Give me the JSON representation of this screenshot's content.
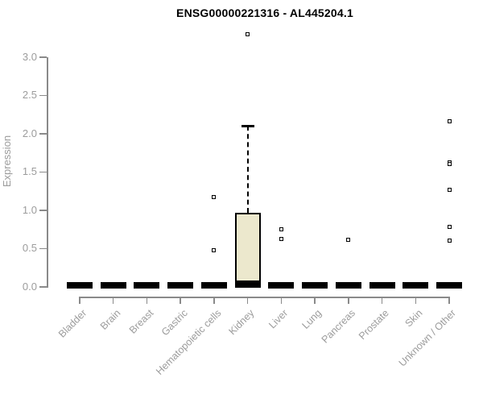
{
  "title": "ENSG00000221316 - AL445204.1",
  "chart_data": {
    "type": "box",
    "title": "ENSG00000221316 - AL445204.1",
    "xlabel": "",
    "ylabel": "Expression",
    "ylim": [
      0,
      3.3
    ],
    "yticks": [
      "0.0",
      "0.5",
      "1.0",
      "1.5",
      "2.0",
      "2.5",
      "3.0"
    ],
    "grid": false,
    "legend": "none",
    "categories": [
      "Bladder",
      "Brain",
      "Breast",
      "Gastric",
      "Hematopoietic cells",
      "Kidney",
      "Liver",
      "Lung",
      "Pancreas",
      "Prostate",
      "Skin",
      "Unknown / Other"
    ],
    "boxes": [
      {
        "category": "Bladder",
        "q1": 0,
        "median": 0,
        "q3": 0,
        "whisker_low": 0,
        "whisker_high": 0,
        "outliers": []
      },
      {
        "category": "Brain",
        "q1": 0,
        "median": 0,
        "q3": 0,
        "whisker_low": 0,
        "whisker_high": 0,
        "outliers": []
      },
      {
        "category": "Breast",
        "q1": 0,
        "median": 0,
        "q3": 0,
        "whisker_low": 0,
        "whisker_high": 0,
        "outliers": []
      },
      {
        "category": "Gastric",
        "q1": 0,
        "median": 0,
        "q3": 0,
        "whisker_low": 0,
        "whisker_high": 0,
        "outliers": []
      },
      {
        "category": "Hematopoietic cells",
        "q1": 0,
        "median": 0,
        "q3": 0,
        "whisker_low": 0,
        "whisker_high": 0,
        "outliers": [
          1.17,
          0.48
        ]
      },
      {
        "category": "Kidney",
        "q1": 0,
        "median": 0.02,
        "q3": 0.97,
        "whisker_low": 0,
        "whisker_high": 2.1,
        "outliers": [
          3.3
        ]
      },
      {
        "category": "Liver",
        "q1": 0,
        "median": 0,
        "q3": 0,
        "whisker_low": 0,
        "whisker_high": 0,
        "outliers": [
          0.75,
          0.63
        ]
      },
      {
        "category": "Lung",
        "q1": 0,
        "median": 0,
        "q3": 0,
        "whisker_low": 0,
        "whisker_high": 0,
        "outliers": []
      },
      {
        "category": "Pancreas",
        "q1": 0,
        "median": 0,
        "q3": 0,
        "whisker_low": 0,
        "whisker_high": 0,
        "outliers": [
          0.62
        ]
      },
      {
        "category": "Prostate",
        "q1": 0,
        "median": 0,
        "q3": 0,
        "whisker_low": 0,
        "whisker_high": 0,
        "outliers": []
      },
      {
        "category": "Skin",
        "q1": 0,
        "median": 0,
        "q3": 0,
        "whisker_low": 0,
        "whisker_high": 0,
        "outliers": []
      },
      {
        "category": "Unknown / Other",
        "q1": 0,
        "median": 0,
        "q3": 0,
        "whisker_low": 0,
        "whisker_high": 0,
        "outliers": [
          2.16,
          1.63,
          1.6,
          1.27,
          0.78,
          0.6
        ]
      }
    ],
    "colors": {
      "box_fill": "#ece8cd",
      "box_border": "#000000",
      "axis": "#8a8a8a",
      "tick_label": "#9c9c9c",
      "title": "#000000",
      "background": "#ffffff"
    }
  }
}
